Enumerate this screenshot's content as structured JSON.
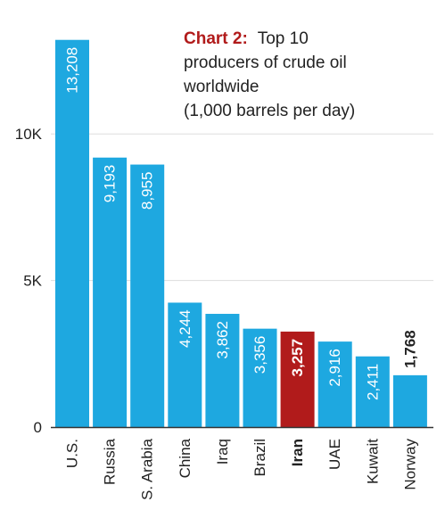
{
  "chart_data": {
    "type": "bar",
    "title_prefix": "Chart 2:",
    "title_lines": [
      "Top 10",
      "producers of crude oil",
      "worldwide",
      "(1,000 barrels per day)"
    ],
    "categories": [
      "U.S.",
      "Russia",
      "S. Arabia",
      "China",
      "Iraq",
      "Brazil",
      "Iran",
      "UAE",
      "Kuwait",
      "Norway"
    ],
    "values": [
      13208,
      9193,
      8955,
      4244,
      3862,
      3356,
      3257,
      2916,
      2411,
      1768
    ],
    "value_labels": [
      "13,208",
      "9,193",
      "8,955",
      "4,244",
      "3,862",
      "3,356",
      "3,257",
      "2,916",
      "2,411",
      "1,768"
    ],
    "highlight_category": "Iran",
    "y_ticks": [
      {
        "value": 0,
        "label": "0"
      },
      {
        "value": 5000,
        "label": "5K"
      },
      {
        "value": 10000,
        "label": "10K"
      }
    ],
    "ylim": [
      0,
      14000
    ],
    "grid": true,
    "colors": {
      "bar": "#1ea8e0",
      "highlight": "#b11b1b",
      "title_prefix": "#b11b1b",
      "text": "#222222",
      "grid": "#dddddd",
      "axis": "#333333"
    }
  }
}
